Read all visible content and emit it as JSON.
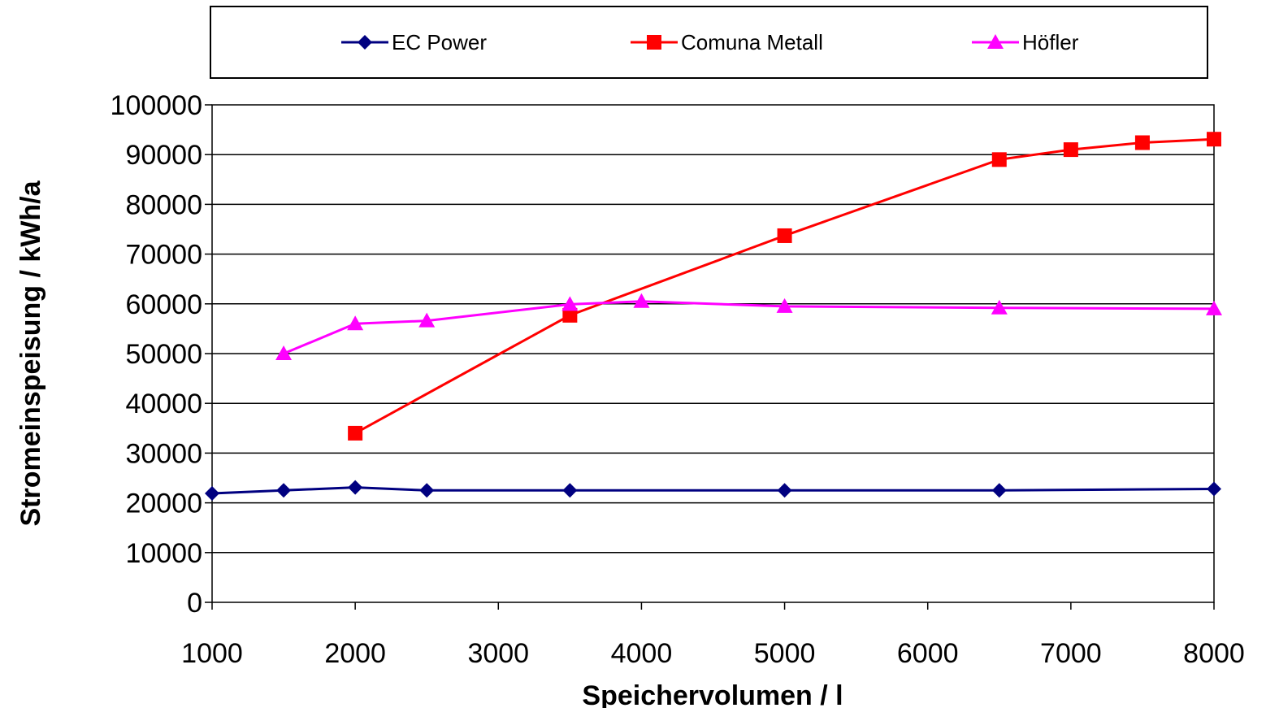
{
  "chart_data": {
    "type": "line",
    "xlabel": "Speichervolumen / l",
    "ylabel": "Stromeinspeisung / kWh/a",
    "xlim": [
      1000,
      8000
    ],
    "ylim": [
      0,
      100000
    ],
    "x_ticks": [
      1000,
      2000,
      3000,
      4000,
      5000,
      6000,
      7000,
      8000
    ],
    "x_tick_labels": [
      "1000",
      "2000",
      "3000",
      "4000",
      "5000",
      "6000",
      "7000",
      "8000"
    ],
    "y_ticks": [
      0,
      10000,
      20000,
      30000,
      40000,
      50000,
      60000,
      70000,
      80000,
      90000,
      100000
    ],
    "y_tick_labels": [
      "0",
      "10000",
      "20000",
      "30000",
      "40000",
      "50000",
      "60000",
      "70000",
      "80000",
      "90000",
      "100000"
    ],
    "grid": "horizontal",
    "legend_position": "top",
    "series": [
      {
        "name": "EC Power",
        "color": "#000080",
        "marker": "diamond",
        "x": [
          1000,
          1500,
          2000,
          2500,
          3500,
          5000,
          6500,
          8000
        ],
        "y": [
          21900,
          22500,
          23100,
          22500,
          22500,
          22500,
          22500,
          22800
        ]
      },
      {
        "name": "Comuna Metall",
        "color": "#ff0000",
        "marker": "square",
        "x": [
          2000,
          3500,
          5000,
          6500,
          7000,
          7500,
          8000
        ],
        "y": [
          34000,
          57700,
          73700,
          89000,
          91000,
          92400,
          93100
        ]
      },
      {
        "name": "Höfler",
        "color": "#ff00ff",
        "marker": "triangle",
        "x": [
          1500,
          2000,
          2500,
          3500,
          4000,
          5000,
          6500,
          8000
        ],
        "y": [
          50000,
          56000,
          56600,
          59900,
          60500,
          59500,
          59200,
          59000
        ]
      }
    ]
  }
}
